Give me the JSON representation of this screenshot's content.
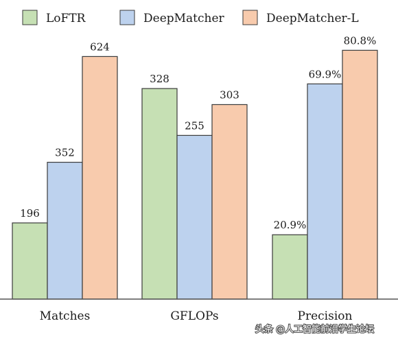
{
  "chart_data": {
    "type": "bar",
    "categories": [
      "Matches",
      "GFLOPs",
      "Precision"
    ],
    "series": [
      {
        "name": "LoFTR",
        "color": "#c6e0b4",
        "values": [
          196,
          328,
          20.9
        ],
        "labels": [
          "196",
          "328",
          "20.9%"
        ]
      },
      {
        "name": "DeepMatcher",
        "color": "#bdd2ee",
        "values": [
          352,
          255,
          69.9
        ],
        "labels": [
          "352",
          "255",
          "69.9%"
        ]
      },
      {
        "name": "DeepMatcher-L",
        "color": "#f8cbad",
        "values": [
          624,
          303,
          80.8
        ],
        "labels": [
          "624",
          "303",
          "80.8%"
        ]
      }
    ],
    "group_scales": [
      {
        "category": "Matches",
        "ylim": [
          0,
          720
        ]
      },
      {
        "category": "GFLOPs",
        "ylim": [
          0,
          436
        ]
      },
      {
        "category": "Precision",
        "ylim": [
          0,
          90.9
        ]
      }
    ],
    "title": "",
    "xlabel": "",
    "ylabel": "",
    "legend": "top",
    "grid": false
  },
  "watermark": "头条 @人工智能前沿学生论坛"
}
